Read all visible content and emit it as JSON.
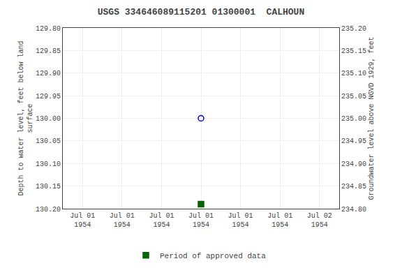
{
  "chart_data": {
    "type": "scatter",
    "title": "USGS 334646089115201 01300001  CALHOUN",
    "ylabel": "Depth to water level, feet below land\nsurface",
    "y2label": "Groundwater level above NGVD 1929, feet",
    "categories": [
      "Jul 01\n1954",
      "Jul 01\n1954",
      "Jul 01\n1954",
      "Jul 01\n1954",
      "Jul 01\n1954",
      "Jul 01\n1954",
      "Jul 02\n1954"
    ],
    "series": [
      {
        "color": "#0000cc",
        "marker": "circle-open",
        "values": [
          null,
          null,
          null,
          130.0,
          null,
          null,
          null
        ]
      },
      {
        "name": "Period of approved data",
        "color": "#006400",
        "marker": "square",
        "values": [
          null,
          null,
          null,
          130.19,
          null,
          null,
          null
        ]
      }
    ],
    "ylim": [
      130.2,
      129.8
    ],
    "yticks": [
      {
        "value": 129.8,
        "label": "129.80"
      },
      {
        "value": 129.85,
        "label": "129.85"
      },
      {
        "value": 129.9,
        "label": "129.90"
      },
      {
        "value": 129.95,
        "label": "129.95"
      },
      {
        "value": 130.0,
        "label": "130.00"
      },
      {
        "value": 130.05,
        "label": "130.05"
      },
      {
        "value": 130.1,
        "label": "130.10"
      },
      {
        "value": 130.15,
        "label": "130.15"
      },
      {
        "value": 130.2,
        "label": "130.20"
      }
    ],
    "y2lim": [
      234.8,
      235.2
    ],
    "y2ticks": [
      {
        "value": 235.2,
        "label": "235.20"
      },
      {
        "value": 235.15,
        "label": "235.15"
      },
      {
        "value": 235.1,
        "label": "235.10"
      },
      {
        "value": 235.05,
        "label": "235.05"
      },
      {
        "value": 235.0,
        "label": "235.00"
      },
      {
        "value": 234.95,
        "label": "234.95"
      },
      {
        "value": 234.9,
        "label": "234.90"
      },
      {
        "value": 234.85,
        "label": "234.85"
      },
      {
        "value": 234.8,
        "label": "234.80"
      }
    ],
    "grid": true,
    "legend": "bottom"
  }
}
